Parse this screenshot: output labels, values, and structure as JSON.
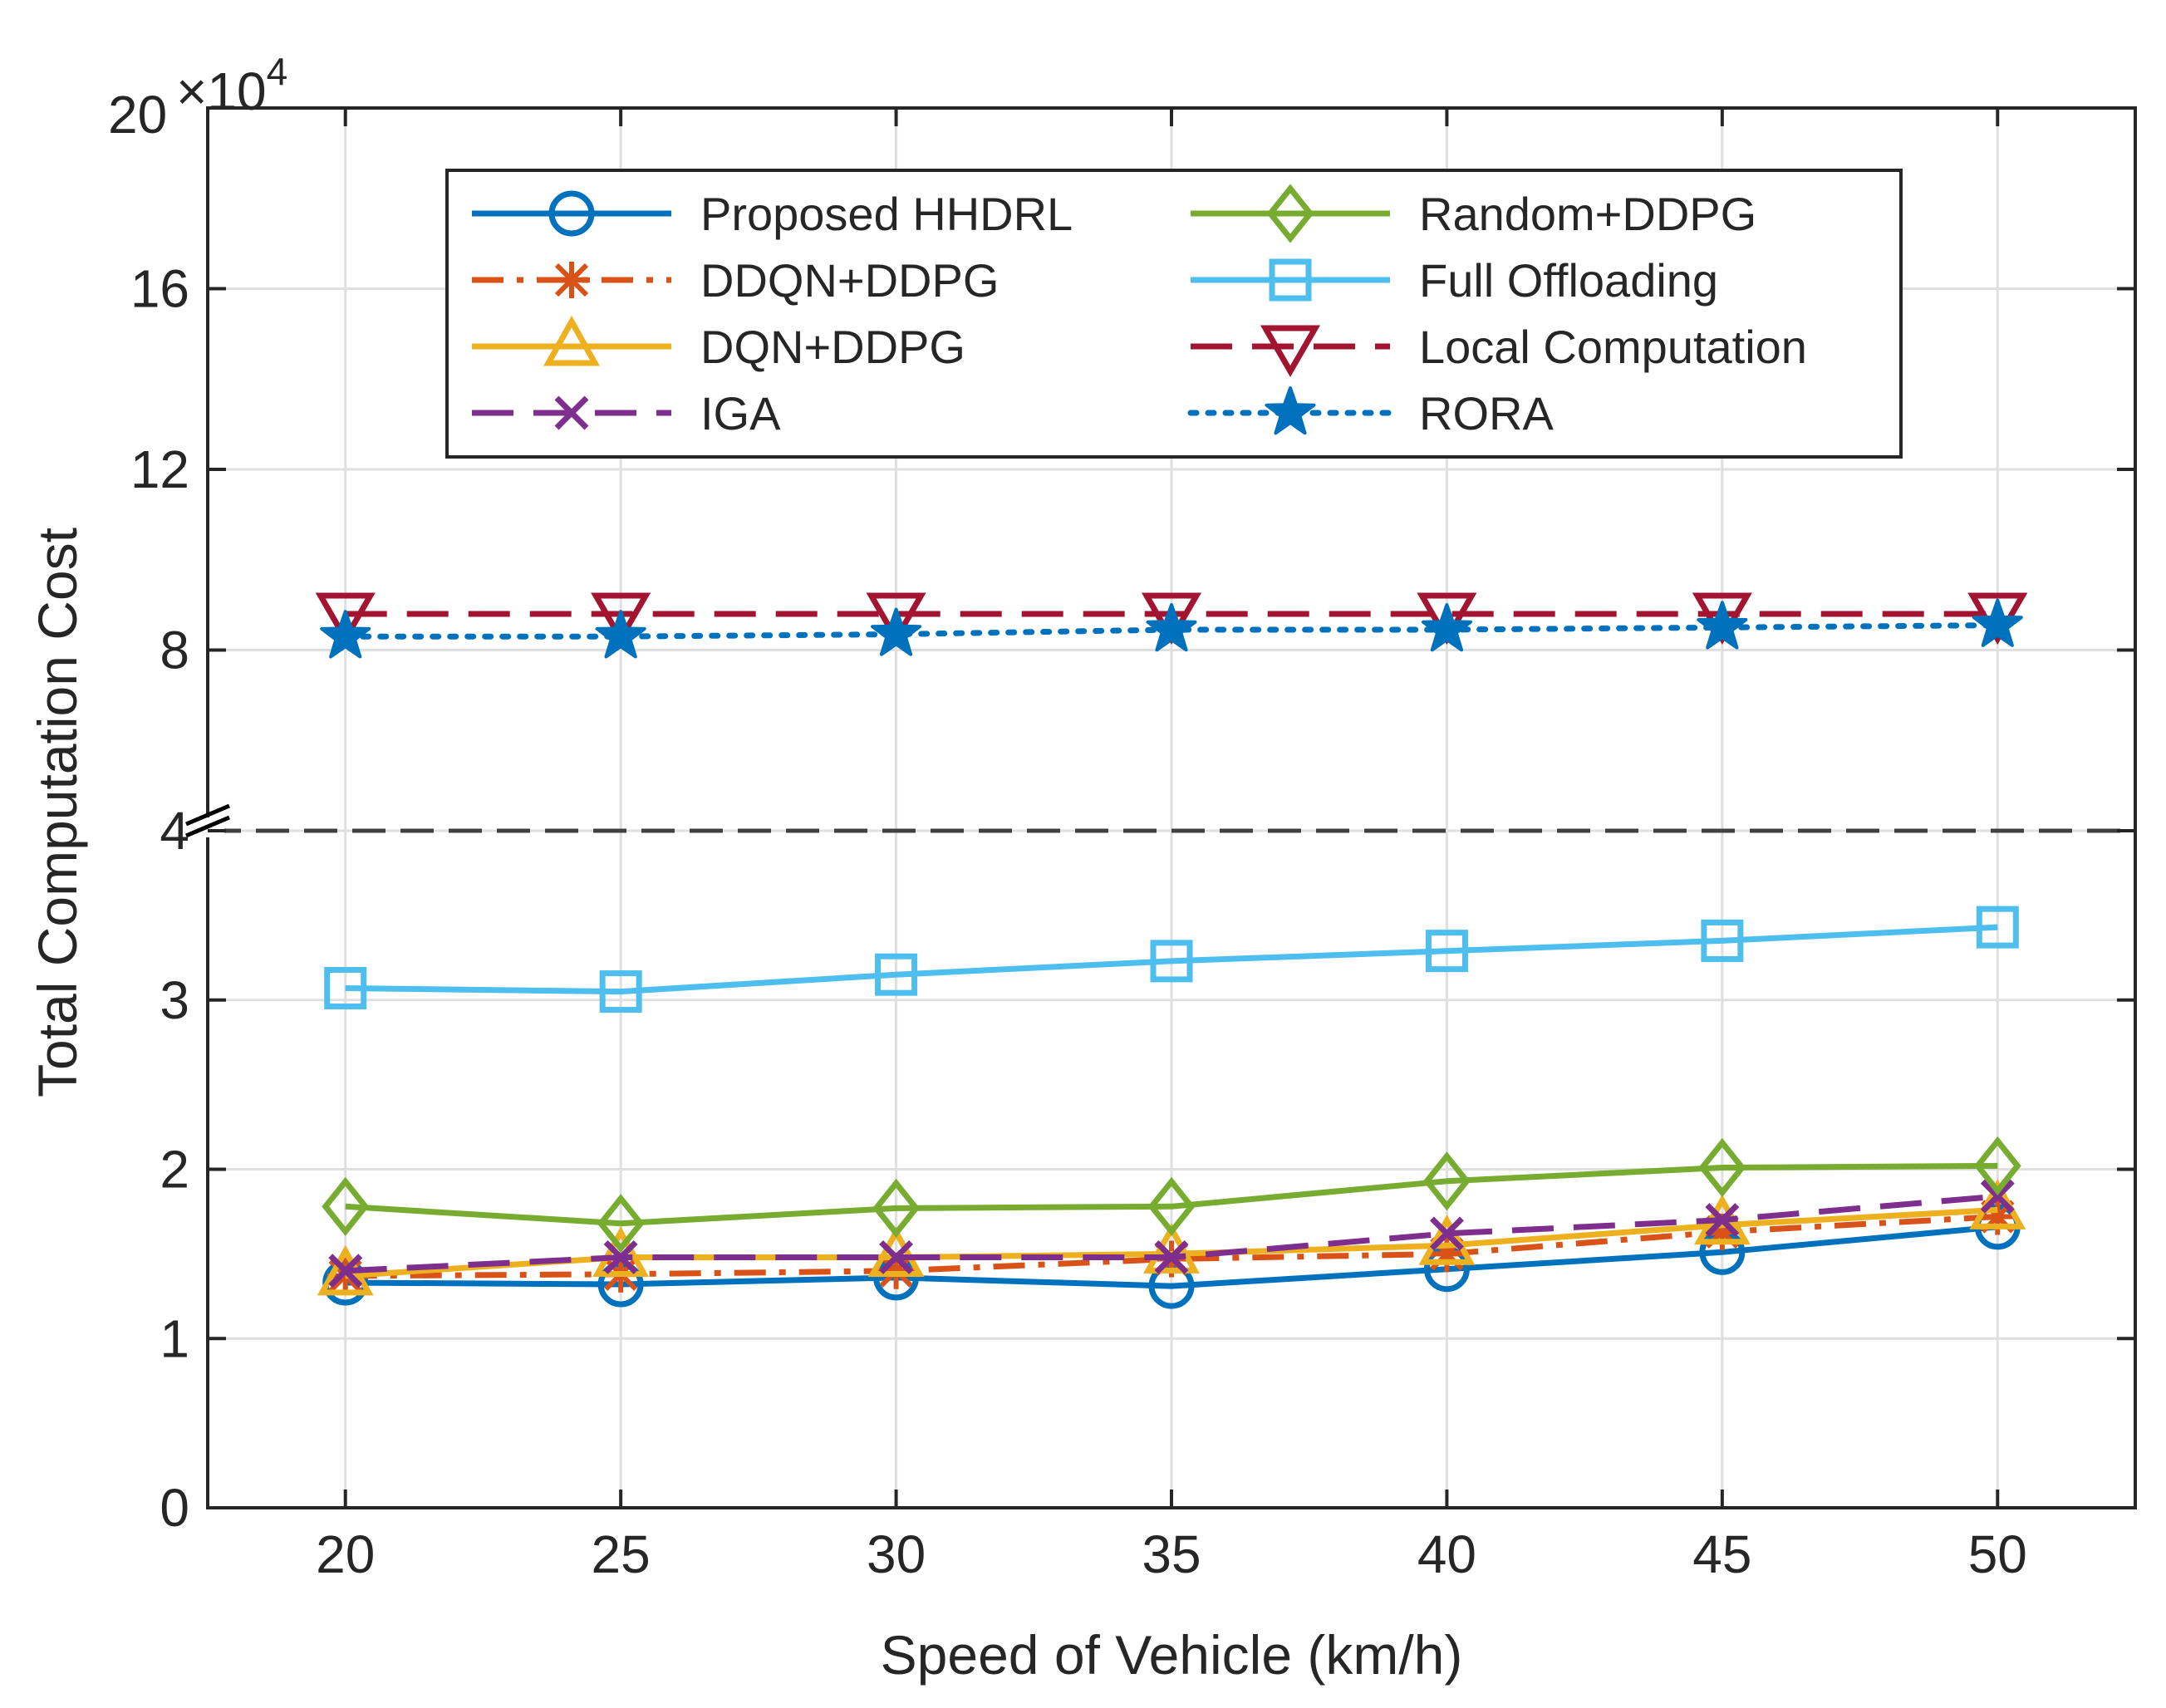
{
  "chart_data": {
    "type": "line",
    "xlabel": "Speed of Vehicle (km/h)",
    "ylabel": "Total Computation Cost",
    "multiplier": "×10",
    "multiplier_exponent": "4",
    "x": [
      20,
      25,
      30,
      35,
      40,
      45,
      50
    ],
    "x_ticks": [
      "20",
      "25",
      "30",
      "35",
      "40",
      "45",
      "50"
    ],
    "xlim": [
      17.5,
      52.5
    ],
    "broken_y_axis": {
      "lower": {
        "range": [
          0,
          4
        ],
        "ticks": [
          "0",
          "1",
          "2",
          "3",
          "4"
        ],
        "tick_values": [
          0,
          1,
          2,
          3,
          4
        ]
      },
      "upper": {
        "range": [
          4,
          20
        ],
        "ticks": [
          "8",
          "12",
          "16",
          "20"
        ],
        "tick_values": [
          8,
          12,
          16,
          20
        ]
      }
    },
    "grid": true,
    "legend_position": "top-center",
    "series": [
      {
        "name": "Proposed HHDRL",
        "color": "#0072BD",
        "dash": "solid",
        "marker": "circle",
        "values": [
          1.33,
          1.32,
          1.36,
          1.31,
          1.41,
          1.51,
          1.66
        ]
      },
      {
        "name": "DDQN+DDPG",
        "color": "#D95319",
        "dash": "dashdot",
        "marker": "asterisk",
        "values": [
          1.37,
          1.38,
          1.4,
          1.47,
          1.5,
          1.63,
          1.72
        ]
      },
      {
        "name": "DQN+DDPG",
        "color": "#EDB120",
        "dash": "solid",
        "marker": "triangle-up",
        "values": [
          1.37,
          1.48,
          1.48,
          1.5,
          1.55,
          1.67,
          1.76
        ]
      },
      {
        "name": "IGA",
        "color": "#7E2F8E",
        "dash": "dashed",
        "marker": "x",
        "values": [
          1.4,
          1.48,
          1.48,
          1.48,
          1.62,
          1.7,
          1.84
        ]
      },
      {
        "name": "Random+DDPG",
        "color": "#77AC30",
        "dash": "solid",
        "marker": "diamond",
        "values": [
          1.78,
          1.68,
          1.77,
          1.78,
          1.93,
          2.01,
          2.02
        ]
      },
      {
        "name": "Full Offloading",
        "color": "#4DBEEE",
        "dash": "solid",
        "marker": "square",
        "values": [
          3.07,
          3.05,
          3.15,
          3.23,
          3.29,
          3.35,
          3.43
        ]
      },
      {
        "name": "Local Computation",
        "color": "#A2142F",
        "dash": "dashed",
        "marker": "triangle-down",
        "values": [
          8.8,
          8.8,
          8.8,
          8.8,
          8.8,
          8.8,
          8.8
        ]
      },
      {
        "name": "RORA",
        "color": "#0072BD",
        "dash": "dotted",
        "marker": "pentagram",
        "values": [
          8.3,
          8.3,
          8.35,
          8.45,
          8.45,
          8.5,
          8.55
        ]
      }
    ]
  }
}
